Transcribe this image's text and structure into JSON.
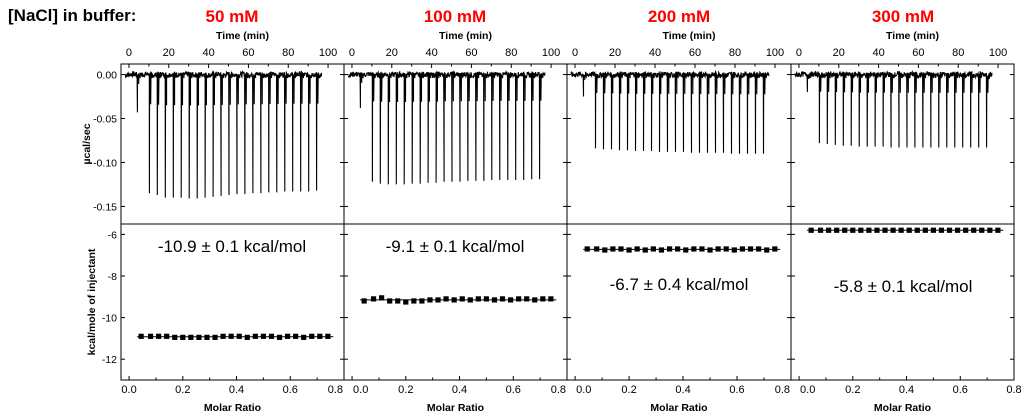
{
  "header": {
    "label": "[NaCl] in buffer:"
  },
  "chart_data": {
    "type": "line",
    "shared": {
      "top_xlabel": "Time (min)",
      "top_ylabel": "µcal/sec",
      "top_xticks": [
        0,
        20,
        40,
        60,
        80,
        100
      ],
      "top_xlim": [
        -4,
        108
      ],
      "top_ylim": [
        -0.17,
        0.012
      ],
      "top_yticks": [
        "0.00",
        "-0.05",
        "-0.10",
        "-0.15"
      ],
      "top_ytick_values": [
        0.0,
        -0.05,
        -0.1,
        -0.15
      ],
      "bottom_xlabel": "Molar Ratio",
      "bottom_ylabel": "kcal/mole of injectant",
      "bottom_xticks": [
        "0.0",
        "0.2",
        "0.4",
        "0.6",
        "0.8"
      ],
      "bottom_xtick_values": [
        0.0,
        0.2,
        0.4,
        0.6,
        0.8
      ],
      "bottom_xlim": [
        -0.03,
        0.8
      ],
      "bottom_ylim": [
        -13,
        -5.5
      ],
      "bottom_yticks": [
        "-6",
        "-8",
        "-10",
        "-12"
      ],
      "bottom_ytick_values": [
        -6,
        -8,
        -10,
        -12
      ]
    },
    "panels": [
      {
        "concentration": "50 mM",
        "dH_label": "-10.9 ± 0.1 kcal/mol",
        "injection_times_min": [
          4,
          10,
          14,
          18,
          22,
          26,
          30,
          34,
          38,
          42,
          46,
          50,
          54,
          58,
          62,
          66,
          70,
          74,
          78,
          82,
          86,
          90,
          94,
          98
        ],
        "peak_heights": [
          -0.043,
          -0.135,
          -0.137,
          -0.14,
          -0.14,
          -0.14,
          -0.141,
          -0.141,
          -0.14,
          -0.139,
          -0.138,
          -0.137,
          -0.136,
          -0.136,
          -0.135,
          -0.135,
          -0.134,
          -0.134,
          -0.133,
          -0.133,
          -0.133,
          -0.133,
          -0.132,
          -0.132
        ],
        "molar_ratio": [
          0.045,
          0.08,
          0.11,
          0.14,
          0.17,
          0.2,
          0.23,
          0.26,
          0.29,
          0.32,
          0.35,
          0.38,
          0.41,
          0.44,
          0.47,
          0.5,
          0.53,
          0.56,
          0.59,
          0.62,
          0.65,
          0.68,
          0.71,
          0.74
        ],
        "enthalpy": [
          -10.9,
          -10.9,
          -10.9,
          -10.9,
          -10.95,
          -10.95,
          -10.95,
          -10.95,
          -10.95,
          -10.95,
          -10.9,
          -10.9,
          -10.9,
          -10.95,
          -10.9,
          -10.9,
          -10.9,
          -10.95,
          -10.9,
          -10.9,
          -10.95,
          -10.9,
          -10.9,
          -10.9
        ],
        "fit": -10.92
      },
      {
        "concentration": "100 mM",
        "dH_label": "-9.1 ± 0.1 kcal/mol",
        "injection_times_min": [
          4,
          10,
          14,
          18,
          22,
          26,
          30,
          34,
          38,
          42,
          46,
          50,
          54,
          58,
          62,
          66,
          70,
          74,
          78,
          82,
          86,
          90,
          94,
          98
        ],
        "peak_heights": [
          -0.038,
          -0.122,
          -0.124,
          -0.125,
          -0.125,
          -0.125,
          -0.124,
          -0.124,
          -0.123,
          -0.123,
          -0.122,
          -0.122,
          -0.122,
          -0.121,
          -0.121,
          -0.121,
          -0.12,
          -0.12,
          -0.12,
          -0.12,
          -0.12,
          -0.119,
          -0.119,
          -0.119
        ],
        "molar_ratio": [
          0.045,
          0.08,
          0.11,
          0.14,
          0.17,
          0.2,
          0.23,
          0.26,
          0.29,
          0.32,
          0.35,
          0.38,
          0.41,
          0.44,
          0.47,
          0.5,
          0.53,
          0.56,
          0.59,
          0.62,
          0.65,
          0.68,
          0.71,
          0.74
        ],
        "enthalpy": [
          -9.2,
          -9.1,
          -9.05,
          -9.2,
          -9.2,
          -9.25,
          -9.2,
          -9.2,
          -9.15,
          -9.15,
          -9.1,
          -9.15,
          -9.1,
          -9.15,
          -9.1,
          -9.1,
          -9.15,
          -9.1,
          -9.15,
          -9.1,
          -9.1,
          -9.15,
          -9.1,
          -9.1
        ],
        "fit": -9.15
      },
      {
        "concentration": "200 mM",
        "dH_label": "-6.7 ± 0.4 kcal/mol",
        "injection_times_min": [
          4,
          10,
          14,
          18,
          22,
          26,
          30,
          34,
          38,
          42,
          46,
          50,
          54,
          58,
          62,
          66,
          70,
          74,
          78,
          82,
          86,
          90,
          94,
          98
        ],
        "peak_heights": [
          -0.025,
          -0.084,
          -0.085,
          -0.085,
          -0.086,
          -0.086,
          -0.087,
          -0.087,
          -0.087,
          -0.088,
          -0.088,
          -0.088,
          -0.088,
          -0.089,
          -0.089,
          -0.089,
          -0.089,
          -0.089,
          -0.09,
          -0.09,
          -0.09,
          -0.09,
          -0.09,
          -0.09
        ],
        "molar_ratio": [
          0.045,
          0.08,
          0.11,
          0.14,
          0.17,
          0.2,
          0.23,
          0.26,
          0.29,
          0.32,
          0.35,
          0.38,
          0.41,
          0.44,
          0.47,
          0.5,
          0.53,
          0.56,
          0.59,
          0.62,
          0.65,
          0.68,
          0.71,
          0.74
        ],
        "enthalpy": [
          -6.7,
          -6.7,
          -6.75,
          -6.7,
          -6.7,
          -6.75,
          -6.7,
          -6.75,
          -6.7,
          -6.75,
          -6.7,
          -6.7,
          -6.75,
          -6.7,
          -6.7,
          -6.75,
          -6.7,
          -6.7,
          -6.75,
          -6.7,
          -6.7,
          -6.7,
          -6.75,
          -6.7
        ],
        "fit": -6.72
      },
      {
        "concentration": "300 mM",
        "dH_label": "-5.8 ± 0.1 kcal/mol",
        "injection_times_min": [
          4,
          10,
          14,
          18,
          22,
          26,
          30,
          34,
          38,
          42,
          46,
          50,
          54,
          58,
          62,
          66,
          70,
          74,
          78,
          82,
          86,
          90,
          94,
          98
        ],
        "peak_heights": [
          -0.02,
          -0.078,
          -0.079,
          -0.08,
          -0.081,
          -0.081,
          -0.082,
          -0.082,
          -0.082,
          -0.082,
          -0.083,
          -0.083,
          -0.083,
          -0.083,
          -0.083,
          -0.083,
          -0.083,
          -0.083,
          -0.083,
          -0.083,
          -0.083,
          -0.083,
          -0.083,
          -0.083
        ],
        "molar_ratio": [
          0.045,
          0.08,
          0.11,
          0.14,
          0.17,
          0.2,
          0.23,
          0.26,
          0.29,
          0.32,
          0.35,
          0.38,
          0.41,
          0.44,
          0.47,
          0.5,
          0.53,
          0.56,
          0.59,
          0.62,
          0.65,
          0.68,
          0.71,
          0.74
        ],
        "enthalpy": [
          -5.8,
          -5.8,
          -5.8,
          -5.8,
          -5.8,
          -5.8,
          -5.8,
          -5.8,
          -5.8,
          -5.8,
          -5.8,
          -5.8,
          -5.8,
          -5.8,
          -5.8,
          -5.8,
          -5.8,
          -5.8,
          -5.8,
          -5.8,
          -5.8,
          -5.8,
          -5.8,
          -5.8
        ],
        "fit": -5.8
      }
    ]
  }
}
